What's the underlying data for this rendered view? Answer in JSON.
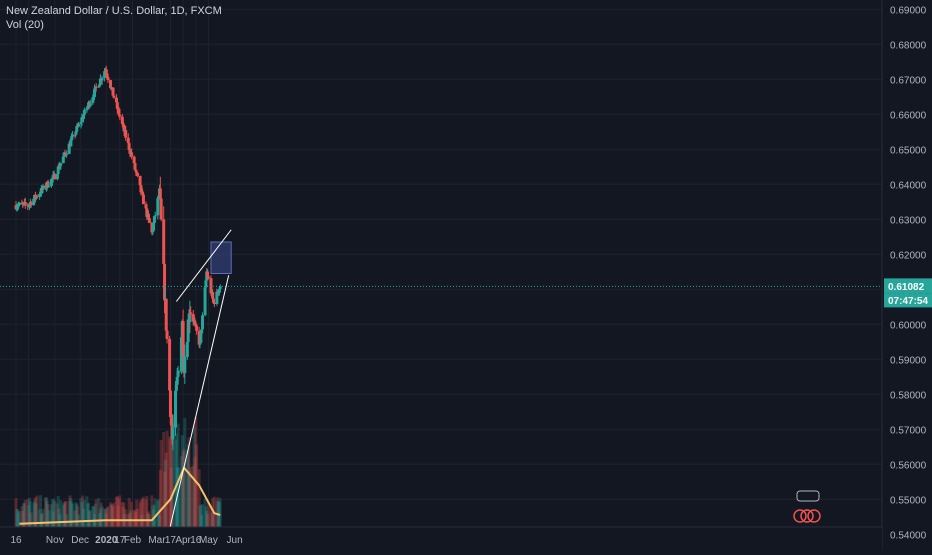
{
  "legend": {
    "symbol_line": "New Zealand Dollar / U.S. Dollar, 1D, FXCM",
    "volume_label": "Vol (20)"
  },
  "price_axis": {
    "ticks": [
      "0.69000",
      "0.68000",
      "0.67000",
      "0.66000",
      "0.65000",
      "0.64000",
      "0.63000",
      "0.62000",
      "0.61000",
      "0.60000",
      "0.59000",
      "0.58000",
      "0.57000",
      "0.56000",
      "0.55000",
      "0.54000"
    ],
    "last_price_label": "0.61082",
    "countdown_label": "07:47:54"
  },
  "time_axis": {
    "ticks": [
      "16",
      "Nov",
      "Dec",
      "2020",
      "17",
      "Feb",
      "Mar",
      "17",
      "Apr",
      "16",
      "May",
      "Jun"
    ]
  },
  "colors": {
    "background": "#131722",
    "up": "#26a69a",
    "down": "#ef5350",
    "ma": "#f5c26b",
    "last_price": "#26a69a",
    "zone": "#3b4d8f",
    "trendline": "#ffffff"
  },
  "chart_data": {
    "type": "candlestick",
    "title": "New Zealand Dollar / U.S. Dollar, 1D, FXCM",
    "ylim": [
      0.5375,
      0.6915
    ],
    "key_points": [
      {
        "x": "2019-09-30",
        "y": 0.634
      },
      {
        "x": "2019-10-31",
        "y": 0.642
      },
      {
        "x": "2019-12-31",
        "y": 0.673
      },
      {
        "x": "2020-01-31",
        "y": 0.648
      },
      {
        "x": "2020-02-24",
        "y": 0.626
      },
      {
        "x": "2020-03-04",
        "y": 0.638
      },
      {
        "x": "2020-03-19",
        "y": 0.567
      },
      {
        "x": "2020-03-31",
        "y": 0.6
      },
      {
        "x": "2020-04-02",
        "y": 0.589
      },
      {
        "x": "2020-04-09",
        "y": 0.605
      },
      {
        "x": "2020-04-21",
        "y": 0.594
      },
      {
        "x": "2020-04-29",
        "y": 0.615
      },
      {
        "x": "2020-05-07",
        "y": 0.606
      },
      {
        "x": "2020-05-15",
        "y": 0.611
      }
    ],
    "volume_ma": [
      {
        "x": "2019-09-20",
        "y": 0.543
      },
      {
        "x": "2019-12-31",
        "y": 0.544
      },
      {
        "x": "2020-02-24",
        "y": 0.544
      },
      {
        "x": "2020-03-17",
        "y": 0.55
      },
      {
        "x": "2020-04-02",
        "y": 0.559
      },
      {
        "x": "2020-04-20",
        "y": 0.554
      },
      {
        "x": "2020-05-08",
        "y": 0.546
      },
      {
        "x": "2020-05-15",
        "y": 0.5455
      }
    ],
    "last_price": 0.61082,
    "zone": {
      "x_start": "2020-05-04",
      "x_end": "2020-05-28",
      "y_low": 0.6145,
      "y_high": 0.6235
    },
    "trendlines": [
      {
        "x1": "2020-03-24",
        "y1": 0.6065,
        "x2": "2020-05-28",
        "y2": 0.627
      },
      {
        "x1": "2020-03-16",
        "y1": 0.5415,
        "x2": "2020-05-25",
        "y2": 0.614
      }
    ]
  }
}
